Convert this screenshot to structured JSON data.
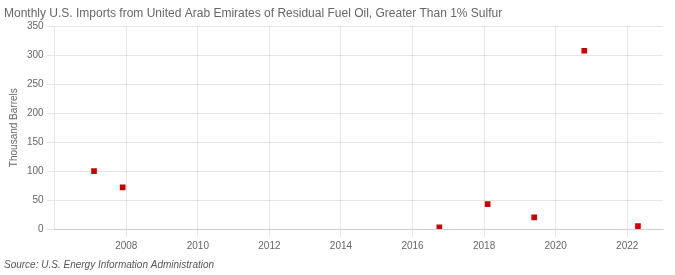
{
  "chart_data": {
    "type": "scatter",
    "title": "Monthly U.S. Imports from United Arab Emirates of Residual Fuel Oil, Greater Than 1% Sulfur",
    "ylabel": "Thousand Barrels",
    "annotation": "Source: U.S. Energy Information Administration",
    "x": [
      2007.1,
      2007.9,
      2016.75,
      2018.1,
      2019.4,
      2020.8,
      2022.3
    ],
    "values": [
      100,
      72,
      3,
      43,
      20,
      308,
      5
    ],
    "color": "#cc0000",
    "marker": "square",
    "xlim": [
      2006.0,
      2023.0
    ],
    "ylim": [
      0,
      350
    ],
    "xticks": [
      2008,
      2010,
      2012,
      2014,
      2016,
      2018,
      2020,
      2022
    ],
    "yticks": [
      0,
      50,
      100,
      150,
      200,
      250,
      300,
      350
    ],
    "grid": true
  }
}
